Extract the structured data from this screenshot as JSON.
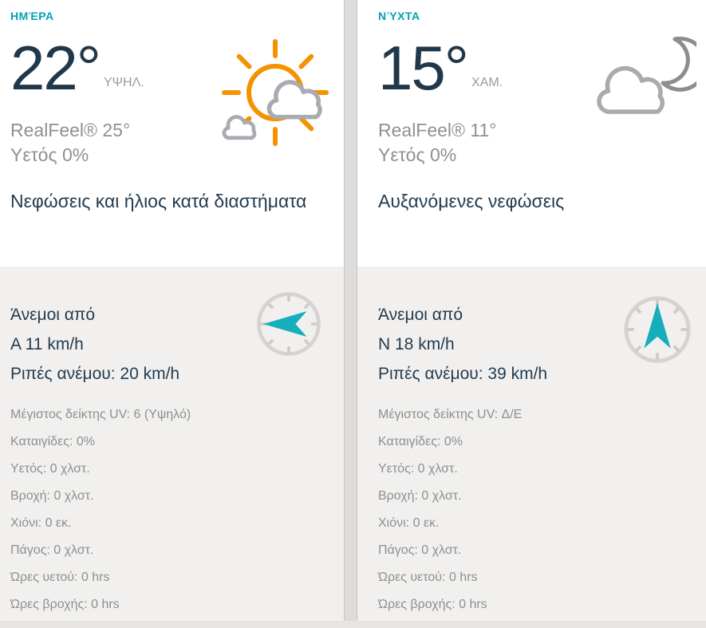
{
  "colors": {
    "accent_teal": "#00a3b4",
    "navy_text": "#233c50",
    "gray_text": "#8f8f8f",
    "sun_orange": "#f49200",
    "cloud_gray": "#a8acb0",
    "moon_gray": "#8d8d8d",
    "compass_ring_gray": "#d6d3d0",
    "compass_arrow_teal": "#17aebc",
    "section_bg_gray": "#f1f0ef"
  },
  "panels": [
    {
      "period_label": "ΗΜΈΡΑ",
      "temperature": "22",
      "degree_symbol": "°",
      "temp_qualifier": "ΥΨΗΛ.",
      "realfeel": "RealFeel® 25°",
      "precip_probability": "Υετός 0%",
      "condition": "Νεφώσεις και ήλιος κατά διαστήματα",
      "weather_icon": "sun-behind-clouds-icon",
      "wind": {
        "heading": "Άνεμοι από",
        "speed": "Α 11 km/h",
        "gusts": "Ριπές ανέμου: 20 km/h",
        "compass_icon": "compass-arrow-pointing-west-icon",
        "arrow_rotation": -90
      },
      "details": [
        "Μέγιστος δείκτης UV: 6 (Υψηλό)",
        "Καταιγίδες: 0%",
        "Υετός: 0 χλστ.",
        "Βροχή: 0 χλστ.",
        "Χιόνι: 0 εκ.",
        "Πάγος: 0 χλστ.",
        "Ώρες υετού: 0 hrs",
        "Ώρες βροχής: 0 hrs"
      ]
    },
    {
      "period_label": "ΝΎΧΤΑ",
      "temperature": "15",
      "degree_symbol": "°",
      "temp_qualifier": "ΧΑΜ.",
      "realfeel": "RealFeel® 11°",
      "precip_probability": "Υετός 0%",
      "condition": "Αυξανόμενες νεφώσεις",
      "weather_icon": "moon-behind-cloud-icon",
      "wind": {
        "heading": "Άνεμοι από",
        "speed": "Ν 18 km/h",
        "gusts": "Ριπές ανέμου: 39 km/h",
        "compass_icon": "compass-arrow-pointing-north-icon",
        "arrow_rotation": 0
      },
      "details": [
        "Μέγιστος δείκτης UV: Δ/Ε",
        "Καταιγίδες: 0%",
        "Υετός: 0 χλστ.",
        "Βροχή: 0 χλστ.",
        "Χιόνι: 0 εκ.",
        "Πάγος: 0 χλστ.",
        "Ώρες υετού: 0 hrs",
        "Ώρες βροχής: 0 hrs"
      ]
    }
  ]
}
